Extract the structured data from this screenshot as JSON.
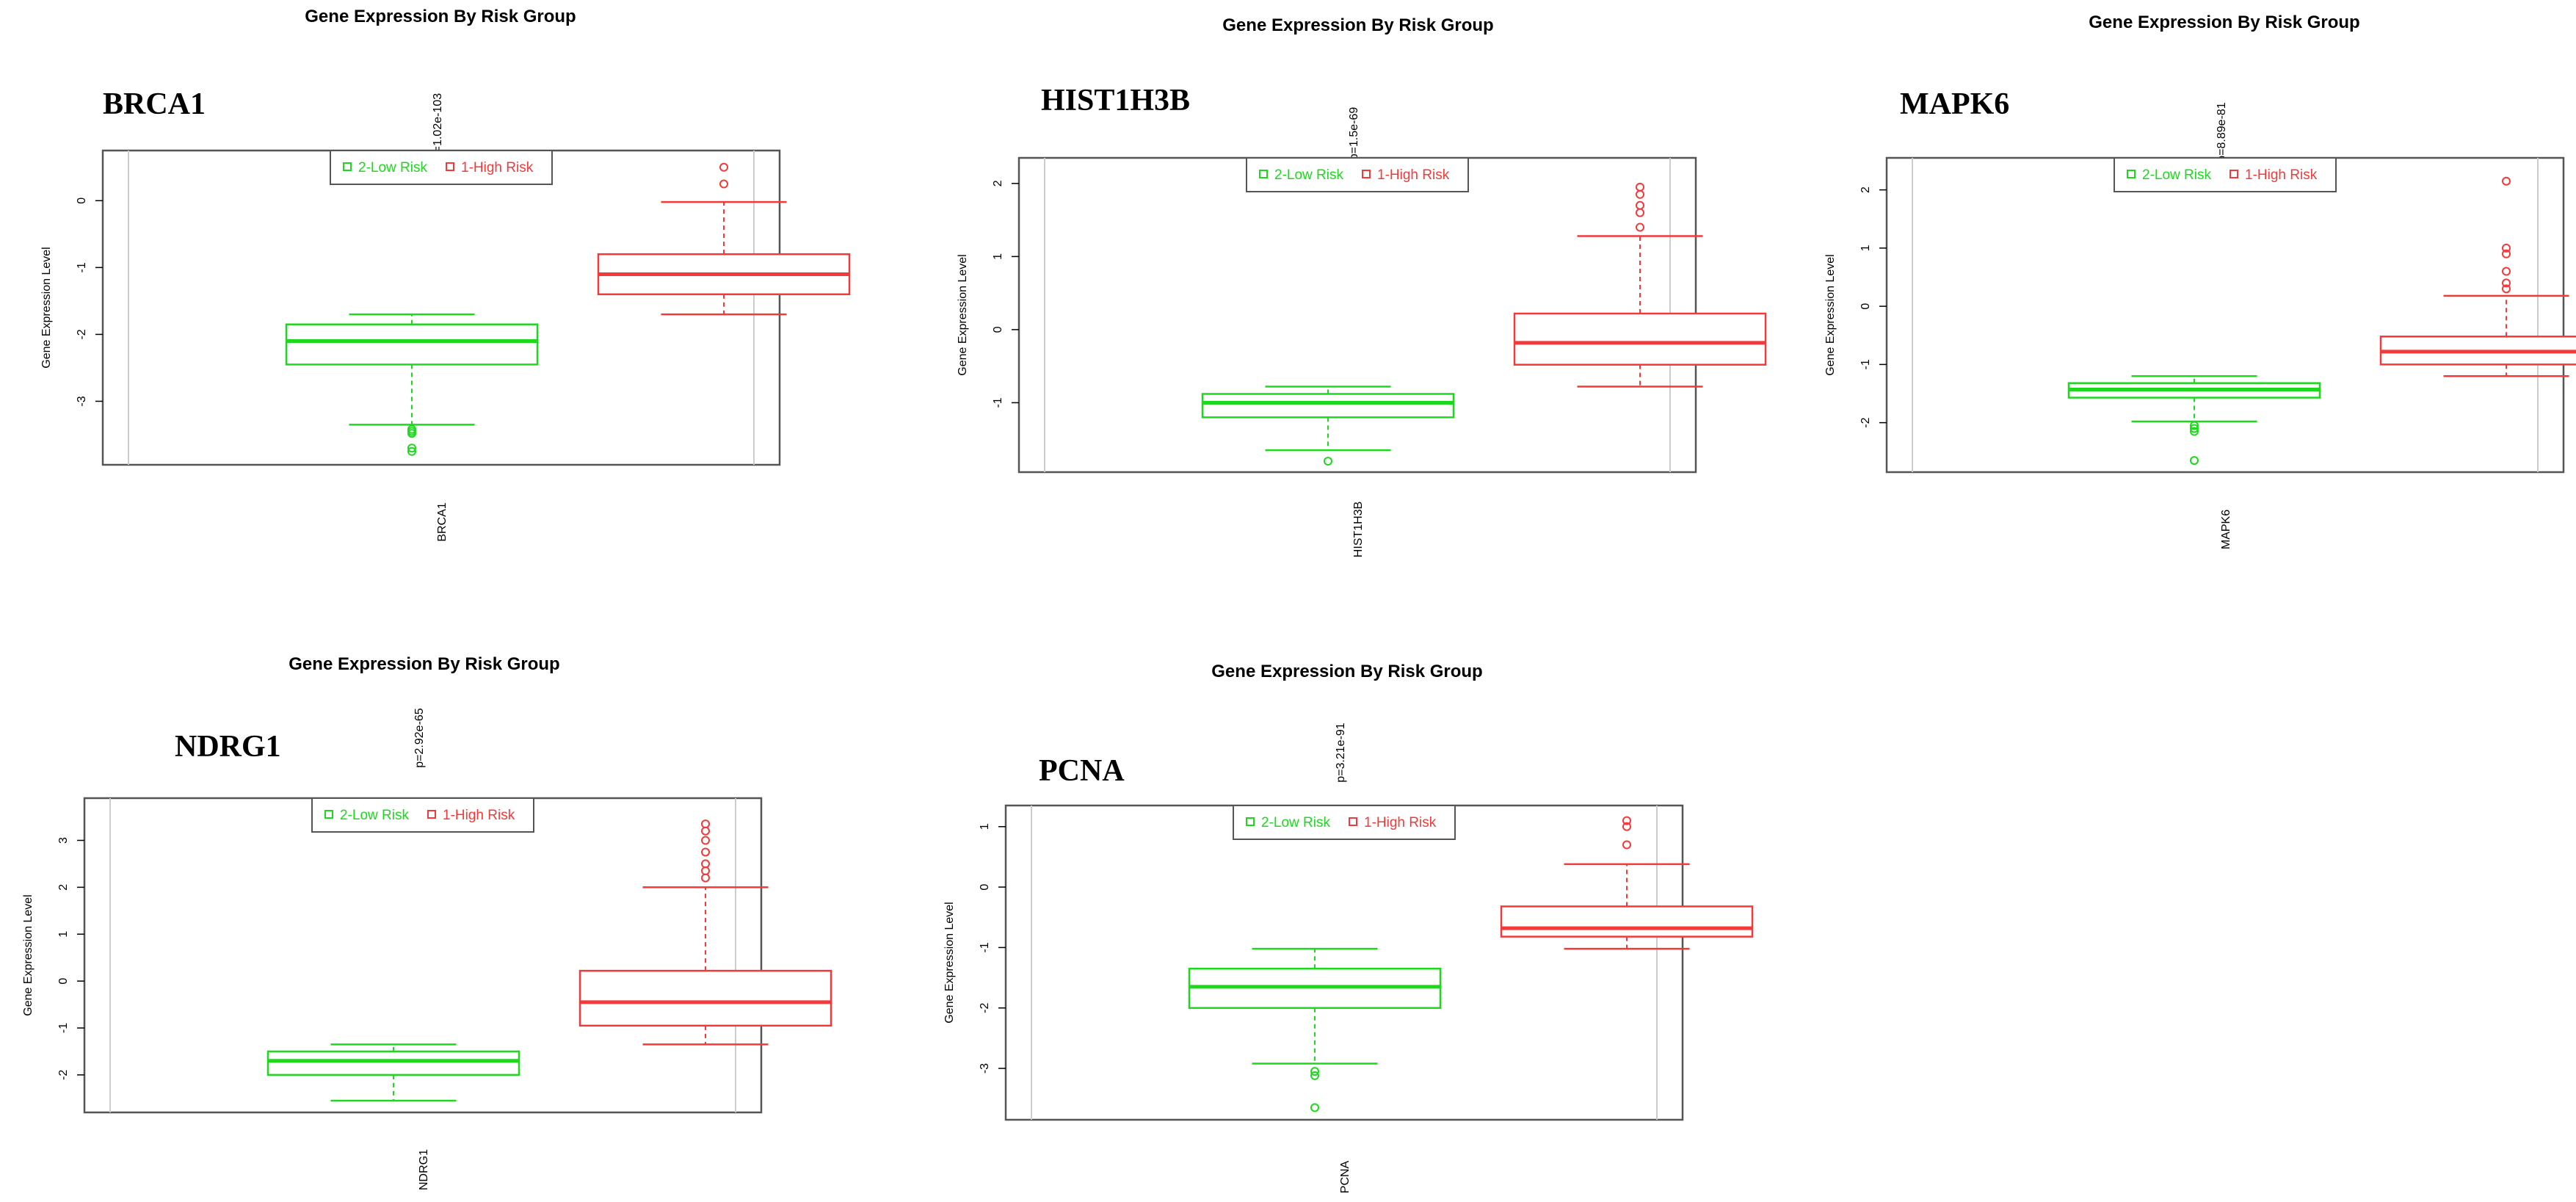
{
  "colors": {
    "low_risk": "#1ed81e",
    "high_risk": "#f23a3a",
    "frame": "#555555",
    "inner_line": "#cccccc"
  },
  "chart_data": [
    {
      "type": "box",
      "title": "Gene Expression By Risk Group",
      "gene": "BRCA1",
      "pvalue_label": "p=1.02e-103",
      "xlabel": "BRCA1",
      "ylabel": "Gene Expression Level",
      "yticks": [
        0,
        -1,
        -2,
        -3
      ],
      "yrange": [
        -3.95,
        0.75
      ],
      "legend": [
        "2-Low Risk",
        "1-High Risk"
      ],
      "series": [
        {
          "name": "2-Low Risk",
          "min": -3.35,
          "q1": -2.45,
          "median": -2.1,
          "q3": -1.85,
          "max": -1.7,
          "outliers": [
            -3.42,
            -3.45,
            -3.48,
            -3.7,
            -3.75
          ]
        },
        {
          "name": "1-High Risk",
          "min": -1.7,
          "q1": -1.4,
          "median": -1.1,
          "q3": -0.8,
          "max": -0.02,
          "outliers": [
            0.25,
            0.5
          ]
        }
      ]
    },
    {
      "type": "box",
      "title": "Gene Expression By Risk Group",
      "gene": "HIST1H3B",
      "pvalue_label": "p=1.5e-69",
      "xlabel": "HIST1H3B",
      "ylabel": "Gene Expression Level",
      "yticks": [
        2,
        1,
        0,
        -1
      ],
      "yrange": [
        -1.95,
        2.35
      ],
      "legend": [
        "2-Low Risk",
        "1-High Risk"
      ],
      "series": [
        {
          "name": "2-Low Risk",
          "min": -1.65,
          "q1": -1.2,
          "median": -1.0,
          "q3": -0.88,
          "max": -0.78,
          "outliers": [
            -1.8
          ]
        },
        {
          "name": "1-High Risk",
          "min": -0.78,
          "q1": -0.48,
          "median": -0.18,
          "q3": 0.22,
          "max": 1.28,
          "outliers": [
            1.4,
            1.6,
            1.7,
            1.85,
            1.95
          ]
        }
      ]
    },
    {
      "type": "box",
      "title": "Gene Expression By Risk Group",
      "gene": "MAPK6",
      "pvalue_label": "p=8.89e-81",
      "xlabel": "MAPK6",
      "ylabel": "Gene Expression Level",
      "yticks": [
        2,
        1,
        0,
        -1,
        -2
      ],
      "yrange": [
        -2.85,
        2.55
      ],
      "legend": [
        "2-Low Risk",
        "1-High Risk"
      ],
      "series": [
        {
          "name": "2-Low Risk",
          "min": -1.98,
          "q1": -1.57,
          "median": -1.43,
          "q3": -1.32,
          "max": -1.2,
          "outliers": [
            -2.05,
            -2.1,
            -2.15,
            -2.65
          ]
        },
        {
          "name": "1-High Risk",
          "min": -1.2,
          "q1": -1.0,
          "median": -0.78,
          "q3": -0.52,
          "max": 0.18,
          "outliers": [
            0.3,
            0.4,
            0.6,
            0.9,
            1.0,
            2.15
          ]
        }
      ]
    },
    {
      "type": "box",
      "title": "Gene Expression By Risk Group",
      "gene": "NDRG1",
      "pvalue_label": "p=2.92e-65",
      "xlabel": "NDRG1",
      "ylabel": "Gene Expression Level",
      "yticks": [
        3,
        2,
        1,
        0,
        -1,
        -2
      ],
      "yrange": [
        -2.8,
        3.9
      ],
      "legend": [
        "2-Low Risk",
        "1-High Risk"
      ],
      "series": [
        {
          "name": "2-Low Risk",
          "min": -2.55,
          "q1": -2.0,
          "median": -1.7,
          "q3": -1.5,
          "max": -1.35,
          "outliers": []
        },
        {
          "name": "1-High Risk",
          "min": -1.35,
          "q1": -0.95,
          "median": -0.45,
          "q3": 0.22,
          "max": 2.0,
          "outliers": [
            2.2,
            2.35,
            2.5,
            2.75,
            3.0,
            3.2,
            3.35
          ]
        }
      ]
    },
    {
      "type": "box",
      "title": "Gene Expression By Risk Group",
      "gene": "PCNA",
      "pvalue_label": "p=3.21e-91",
      "xlabel": "PCNA",
      "ylabel": "Gene Expression Level",
      "yticks": [
        1,
        0,
        -1,
        -2,
        -3
      ],
      "yrange": [
        -3.85,
        1.35
      ],
      "legend": [
        "2-Low Risk",
        "1-High Risk"
      ],
      "series": [
        {
          "name": "2-Low Risk",
          "min": -2.92,
          "q1": -2.0,
          "median": -1.65,
          "q3": -1.35,
          "max": -1.02,
          "outliers": [
            -3.05,
            -3.12,
            -3.65
          ]
        },
        {
          "name": "1-High Risk",
          "min": -1.02,
          "q1": -0.82,
          "median": -0.68,
          "q3": -0.32,
          "max": 0.38,
          "outliers": [
            0.7,
            1.0,
            1.1
          ]
        }
      ]
    }
  ]
}
